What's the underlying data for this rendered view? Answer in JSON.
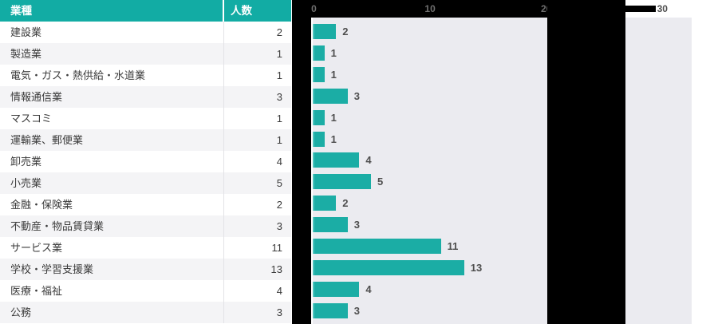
{
  "table": {
    "header": {
      "industry": "業種",
      "count": "人数"
    },
    "rows": [
      {
        "industry": "建設業",
        "count": "2"
      },
      {
        "industry": "製造業",
        "count": "1"
      },
      {
        "industry": "電気・ガス・熱供給・水道業",
        "count": "1"
      },
      {
        "industry": "情報通信業",
        "count": "3"
      },
      {
        "industry": "マスコミ",
        "count": "1"
      },
      {
        "industry": "運輸業、郵便業",
        "count": "1"
      },
      {
        "industry": "卸売業",
        "count": "4"
      },
      {
        "industry": "小売業",
        "count": "5"
      },
      {
        "industry": "金融・保険業",
        "count": "2"
      },
      {
        "industry": "不動産・物品賃貸業",
        "count": "3"
      },
      {
        "industry": "サービス業",
        "count": "11"
      },
      {
        "industry": "学校・学習支援業",
        "count": "13"
      },
      {
        "industry": "医療・福祉",
        "count": "4"
      },
      {
        "industry": "公務",
        "count": "3"
      }
    ]
  },
  "chart_data": {
    "type": "bar",
    "orientation": "horizontal",
    "title": "",
    "xlabel": "",
    "ylabel": "",
    "categories": [
      "建設業",
      "製造業",
      "電気・ガス・熱供給・水道業",
      "情報通信業",
      "マスコミ",
      "運輸業、郵便業",
      "卸売業",
      "小売業",
      "金融・保険業",
      "不動産・物品賃貸業",
      "サービス業",
      "学校・学習支援業",
      "医療・福祉",
      "公務"
    ],
    "values": [
      2,
      1,
      1,
      3,
      1,
      1,
      4,
      5,
      2,
      3,
      11,
      13,
      4,
      3
    ],
    "data_labels": [
      "2",
      "1",
      "1",
      "3",
      "1",
      "1",
      "4",
      "5",
      "2",
      "3",
      "11",
      "13",
      "4",
      "3"
    ],
    "x_ticks": [
      "0",
      "10",
      "20",
      "30"
    ],
    "xlim": [
      0,
      31
    ],
    "grid": false,
    "legend": "none",
    "axis_position": "top"
  },
  "colors": {
    "header_bg": "#12ACA4",
    "bar_fill": "#1BADA5",
    "bar_edge": "#4CC4BD",
    "plot_bg": "#EBEBF0",
    "row_alt_bg": "#F4F4F6",
    "table_text": "#3B3B3B",
    "tick_text": "#6F6F6F",
    "label_text": "#4E4E4E",
    "redaction": "#000000"
  }
}
